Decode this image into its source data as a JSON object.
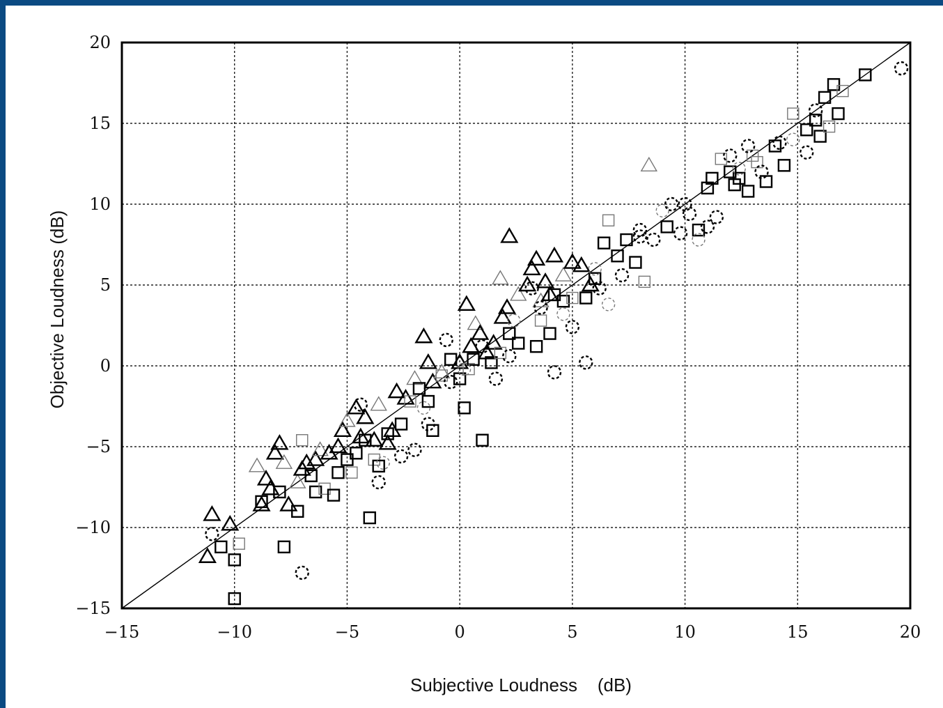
{
  "chart_data": {
    "type": "scatter",
    "title": "",
    "xlabel": "Subjective Loudness    (dB)",
    "ylabel": "Objective Loudness (dB)",
    "xlim": [
      -15,
      20
    ],
    "ylim": [
      -15,
      20
    ],
    "xticks": [
      -15,
      -10,
      -5,
      0,
      5,
      10,
      15,
      20
    ],
    "yticks": [
      -15,
      -10,
      -5,
      0,
      5,
      10,
      15,
      20
    ],
    "xtick_labels": [
      "−15",
      "−10",
      "−5",
      "0",
      "5",
      "10",
      "15",
      "20"
    ],
    "ytick_labels": [
      "−15",
      "−10",
      "−5",
      "0",
      "5",
      "10",
      "15",
      "20"
    ],
    "grid": true,
    "reference_line": {
      "x": [
        -15,
        20
      ],
      "y": [
        -15,
        20
      ]
    },
    "series": [
      {
        "marker": "triangle",
        "points": [
          [
            -11.0,
            -9.2
          ],
          [
            -11.2,
            -11.8
          ],
          [
            -10.2,
            -9.8
          ],
          [
            -9.0,
            -6.2
          ],
          [
            -8.6,
            -7.0
          ],
          [
            -8.2,
            -5.4
          ],
          [
            -8.0,
            -4.8
          ],
          [
            -7.8,
            -6.0
          ],
          [
            -8.4,
            -7.6
          ],
          [
            -8.8,
            -8.6
          ],
          [
            -7.6,
            -8.6
          ],
          [
            -7.2,
            -7.2
          ],
          [
            -7.0,
            -6.4
          ],
          [
            -6.8,
            -6.0
          ],
          [
            -6.4,
            -5.8
          ],
          [
            -6.2,
            -5.2
          ],
          [
            -5.8,
            -5.4
          ],
          [
            -5.4,
            -5.0
          ],
          [
            -5.2,
            -4.0
          ],
          [
            -5.0,
            -3.4
          ],
          [
            -4.6,
            -2.6
          ],
          [
            -4.2,
            -3.2
          ],
          [
            -3.8,
            -4.6
          ],
          [
            -3.6,
            -2.4
          ],
          [
            -3.2,
            -4.8
          ],
          [
            -2.8,
            -1.6
          ],
          [
            -2.4,
            -2.0
          ],
          [
            -2.0,
            -0.8
          ],
          [
            -1.6,
            1.8
          ],
          [
            -1.4,
            0.2
          ],
          [
            -1.2,
            -1.0
          ],
          [
            -0.8,
            -0.4
          ],
          [
            0.0,
            0.2
          ],
          [
            0.3,
            3.8
          ],
          [
            0.5,
            1.2
          ],
          [
            0.7,
            2.6
          ],
          [
            0.9,
            2.0
          ],
          [
            1.2,
            0.8
          ],
          [
            1.5,
            1.4
          ],
          [
            1.8,
            5.4
          ],
          [
            1.9,
            3.0
          ],
          [
            2.1,
            3.6
          ],
          [
            2.2,
            8.0
          ],
          [
            2.6,
            4.4
          ],
          [
            3.0,
            5.0
          ],
          [
            3.2,
            6.0
          ],
          [
            3.4,
            6.6
          ],
          [
            3.6,
            4.0
          ],
          [
            3.8,
            5.2
          ],
          [
            4.0,
            4.4
          ],
          [
            4.2,
            6.8
          ],
          [
            4.6,
            5.6
          ],
          [
            5.0,
            6.4
          ],
          [
            5.4,
            6.2
          ],
          [
            5.8,
            5.0
          ],
          [
            8.4,
            12.4
          ],
          [
            -4.4,
            -4.4
          ],
          [
            -3.0,
            -4.0
          ]
        ]
      },
      {
        "marker": "square",
        "points": [
          [
            -10.6,
            -11.2
          ],
          [
            -10.0,
            -12.0
          ],
          [
            -10.0,
            -14.4
          ],
          [
            -9.8,
            -11.0
          ],
          [
            -8.8,
            -8.4
          ],
          [
            -8.0,
            -7.8
          ],
          [
            -7.8,
            -11.2
          ],
          [
            -7.0,
            -4.6
          ],
          [
            -7.2,
            -9.0
          ],
          [
            -6.6,
            -6.8
          ],
          [
            -6.4,
            -7.8
          ],
          [
            -6.0,
            -7.6
          ],
          [
            -5.6,
            -8.0
          ],
          [
            -5.4,
            -6.6
          ],
          [
            -5.0,
            -5.8
          ],
          [
            -4.8,
            -6.6
          ],
          [
            -4.6,
            -5.4
          ],
          [
            -4.2,
            -4.6
          ],
          [
            -4.0,
            -9.4
          ],
          [
            -3.8,
            -5.8
          ],
          [
            -3.6,
            -6.2
          ],
          [
            -3.2,
            -4.2
          ],
          [
            -2.6,
            -3.6
          ],
          [
            -2.2,
            -2.2
          ],
          [
            -1.8,
            -1.4
          ],
          [
            -1.4,
            -2.2
          ],
          [
            -1.2,
            -4.0
          ],
          [
            -0.8,
            -0.6
          ],
          [
            -0.4,
            0.4
          ],
          [
            0.0,
            -0.8
          ],
          [
            0.2,
            -2.6
          ],
          [
            0.4,
            -0.2
          ],
          [
            0.6,
            0.4
          ],
          [
            1.0,
            -4.6
          ],
          [
            1.4,
            0.2
          ],
          [
            1.8,
            0.8
          ],
          [
            2.2,
            2.0
          ],
          [
            2.6,
            1.4
          ],
          [
            3.4,
            1.2
          ],
          [
            3.6,
            2.8
          ],
          [
            4.0,
            2.0
          ],
          [
            4.2,
            4.4
          ],
          [
            4.6,
            4.0
          ],
          [
            5.0,
            4.2
          ],
          [
            5.6,
            4.2
          ],
          [
            6.0,
            5.4
          ],
          [
            6.4,
            7.6
          ],
          [
            6.6,
            9.0
          ],
          [
            7.0,
            6.8
          ],
          [
            7.4,
            7.8
          ],
          [
            7.8,
            6.4
          ],
          [
            8.2,
            5.2
          ],
          [
            9.2,
            8.6
          ],
          [
            10.6,
            8.4
          ],
          [
            11.2,
            11.6
          ],
          [
            11.6,
            12.8
          ],
          [
            12.2,
            11.2
          ],
          [
            12.4,
            11.6
          ],
          [
            12.8,
            10.8
          ],
          [
            13.2,
            12.6
          ],
          [
            13.6,
            11.4
          ],
          [
            14.0,
            13.6
          ],
          [
            14.4,
            12.4
          ],
          [
            14.8,
            15.6
          ],
          [
            15.4,
            14.6
          ],
          [
            15.8,
            15.2
          ],
          [
            16.0,
            14.2
          ],
          [
            16.4,
            14.8
          ],
          [
            16.8,
            15.6
          ],
          [
            16.6,
            17.4
          ],
          [
            16.2,
            16.6
          ],
          [
            17.0,
            17.0
          ],
          [
            18.0,
            18.0
          ],
          [
            11.0,
            11.0
          ],
          [
            12.0,
            12.0
          ],
          [
            13.0,
            13.0
          ]
        ]
      },
      {
        "marker": "circle",
        "points": [
          [
            -11.0,
            -10.4
          ],
          [
            -7.0,
            -12.8
          ],
          [
            -4.4,
            -2.4
          ],
          [
            -3.4,
            -6.0
          ],
          [
            -3.6,
            -7.2
          ],
          [
            -2.6,
            -5.6
          ],
          [
            -2.0,
            -5.2
          ],
          [
            -1.6,
            -2.6
          ],
          [
            -1.4,
            -3.6
          ],
          [
            -0.6,
            1.6
          ],
          [
            -0.4,
            -1.0
          ],
          [
            0.2,
            -0.2
          ],
          [
            1.0,
            1.2
          ],
          [
            1.6,
            -0.8
          ],
          [
            2.2,
            0.6
          ],
          [
            2.4,
            2.8
          ],
          [
            3.2,
            4.8
          ],
          [
            3.6,
            3.6
          ],
          [
            4.2,
            -0.4
          ],
          [
            4.6,
            3.2
          ],
          [
            5.0,
            2.4
          ],
          [
            5.6,
            0.2
          ],
          [
            6.2,
            4.8
          ],
          [
            6.6,
            3.8
          ],
          [
            7.2,
            5.6
          ],
          [
            8.0,
            8.4
          ],
          [
            8.6,
            7.8
          ],
          [
            9.0,
            9.6
          ],
          [
            9.4,
            10.0
          ],
          [
            9.8,
            8.2
          ],
          [
            10.2,
            9.4
          ],
          [
            10.6,
            7.8
          ],
          [
            11.0,
            8.6
          ],
          [
            11.4,
            9.2
          ],
          [
            12.0,
            13.0
          ],
          [
            12.4,
            12.2
          ],
          [
            12.8,
            13.6
          ],
          [
            13.4,
            12.0
          ],
          [
            14.2,
            13.8
          ],
          [
            14.8,
            14.0
          ],
          [
            15.4,
            13.2
          ],
          [
            15.8,
            15.8
          ],
          [
            19.6,
            18.4
          ],
          [
            6.0,
            6.0
          ],
          [
            8.0,
            8.0
          ],
          [
            10.0,
            10.0
          ]
        ]
      }
    ]
  }
}
